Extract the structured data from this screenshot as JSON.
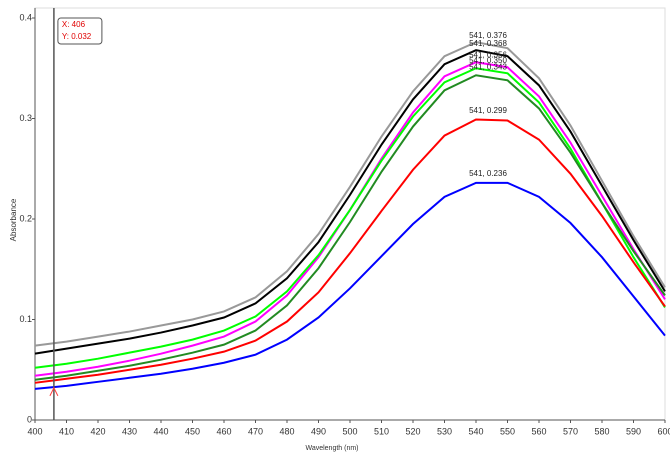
{
  "chart_data": {
    "type": "line",
    "x_label": "Wavelength (nm)",
    "y_label": "Absorbance",
    "x": [
      400,
      410,
      420,
      430,
      440,
      450,
      460,
      470,
      480,
      490,
      500,
      510,
      520,
      530,
      540,
      550,
      560,
      570,
      580,
      590,
      600
    ],
    "xlim": [
      400,
      600
    ],
    "xticks": [
      400,
      410,
      420,
      430,
      440,
      450,
      460,
      470,
      480,
      490,
      500,
      510,
      520,
      530,
      540,
      550,
      560,
      570,
      580,
      590,
      600
    ],
    "ylim": [
      0,
      0.4
    ],
    "yticks": [
      0,
      0.1,
      0.2,
      0.3,
      0.4
    ],
    "series": [
      {
        "color": "#999999",
        "peak_label": "541, 0.376",
        "values": [
          0.074,
          0.078,
          0.083,
          0.088,
          0.094,
          0.1,
          0.108,
          0.122,
          0.148,
          0.185,
          0.232,
          0.282,
          0.327,
          0.362,
          0.376,
          0.37,
          0.34,
          0.293,
          0.238,
          0.183,
          0.132
        ]
      },
      {
        "color": "#000000",
        "peak_label": "541, 0.368",
        "values": [
          0.066,
          0.071,
          0.076,
          0.081,
          0.087,
          0.094,
          0.102,
          0.116,
          0.141,
          0.177,
          0.224,
          0.274,
          0.319,
          0.354,
          0.368,
          0.362,
          0.333,
          0.287,
          0.233,
          0.179,
          0.128
        ]
      },
      {
        "color": "#ff00ff",
        "peak_label": "541, 0.356",
        "values": [
          0.044,
          0.048,
          0.053,
          0.059,
          0.066,
          0.074,
          0.083,
          0.098,
          0.124,
          0.162,
          0.209,
          0.26,
          0.306,
          0.342,
          0.356,
          0.351,
          0.322,
          0.276,
          0.223,
          0.17,
          0.12
        ]
      },
      {
        "color": "#00ff00",
        "peak_label": "541, 0.350",
        "values": [
          0.052,
          0.056,
          0.061,
          0.067,
          0.073,
          0.08,
          0.089,
          0.103,
          0.128,
          0.164,
          0.209,
          0.258,
          0.302,
          0.336,
          0.35,
          0.345,
          0.316,
          0.27,
          0.216,
          0.162,
          0.112
        ]
      },
      {
        "color": "#228b22",
        "peak_label": "541, 0.343",
        "values": [
          0.04,
          0.044,
          0.049,
          0.054,
          0.06,
          0.067,
          0.075,
          0.089,
          0.114,
          0.151,
          0.197,
          0.247,
          0.292,
          0.328,
          0.343,
          0.338,
          0.31,
          0.266,
          0.216,
          0.168,
          0.124
        ]
      },
      {
        "color": "#ff0000",
        "peak_label": "541, 0.299",
        "values": [
          0.037,
          0.041,
          0.045,
          0.05,
          0.055,
          0.061,
          0.068,
          0.079,
          0.098,
          0.127,
          0.166,
          0.208,
          0.249,
          0.283,
          0.299,
          0.298,
          0.279,
          0.245,
          0.203,
          0.157,
          0.113
        ]
      },
      {
        "color": "#0000ff",
        "peak_label": "541, 0.236",
        "values": [
          0.031,
          0.034,
          0.038,
          0.042,
          0.046,
          0.051,
          0.057,
          0.065,
          0.08,
          0.102,
          0.131,
          0.163,
          0.195,
          0.222,
          0.236,
          0.236,
          0.222,
          0.196,
          0.162,
          0.123,
          0.084
        ]
      }
    ],
    "cursor": {
      "x": 406,
      "y": 0.032,
      "label_x": "X: 406",
      "label_y": "Y: 0.032"
    }
  }
}
